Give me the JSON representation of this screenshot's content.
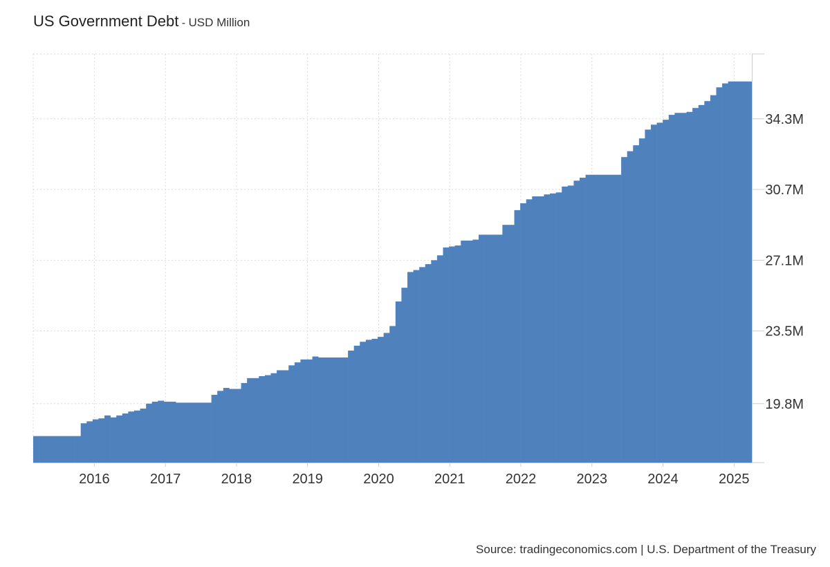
{
  "header": {
    "title": "US Government Debt",
    "separator": " - ",
    "subtitle": "USD Million"
  },
  "source": "Source: tradingeconomics.com | U.S. Department of the Treasury",
  "colors": {
    "bar": "#4f81bd",
    "grid": "#d9d9d9",
    "axis": "#cccccc",
    "text": "#333333"
  },
  "chart_data": {
    "type": "bar",
    "title": "US Government Debt",
    "subtitle": "USD Million",
    "grid": true,
    "y_axis_position": "right",
    "ylim": [
      16.8,
      37.6
    ],
    "x_range": [
      2015.14,
      2025.25
    ],
    "yticks": [
      {
        "value": 19.8,
        "label": "19.8M"
      },
      {
        "value": 23.5,
        "label": "23.5M"
      },
      {
        "value": 27.1,
        "label": "27.1M"
      },
      {
        "value": 30.7,
        "label": "30.7M"
      },
      {
        "value": 34.3,
        "label": "34.3M"
      }
    ],
    "xticks": [
      {
        "value": 2016,
        "label": "2016"
      },
      {
        "value": 2017,
        "label": "2017"
      },
      {
        "value": 2018,
        "label": "2018"
      },
      {
        "value": 2019,
        "label": "2019"
      },
      {
        "value": 2020,
        "label": "2020"
      },
      {
        "value": 2021,
        "label": "2021"
      },
      {
        "value": 2022,
        "label": "2022"
      },
      {
        "value": 2023,
        "label": "2023"
      },
      {
        "value": 2024,
        "label": "2024"
      },
      {
        "value": 2025,
        "label": "2025"
      }
    ],
    "categories": [
      "2015-03",
      "2015-04",
      "2015-05",
      "2015-06",
      "2015-07",
      "2015-08",
      "2015-09",
      "2015-10",
      "2015-11",
      "2015-12",
      "2016-01",
      "2016-02",
      "2016-03",
      "2016-04",
      "2016-05",
      "2016-06",
      "2016-07",
      "2016-08",
      "2016-09",
      "2016-10",
      "2016-11",
      "2016-12",
      "2017-01",
      "2017-02",
      "2017-03",
      "2017-04",
      "2017-05",
      "2017-06",
      "2017-07",
      "2017-08",
      "2017-09",
      "2017-10",
      "2017-11",
      "2017-12",
      "2018-01",
      "2018-02",
      "2018-03",
      "2018-04",
      "2018-05",
      "2018-06",
      "2018-07",
      "2018-08",
      "2018-09",
      "2018-10",
      "2018-11",
      "2018-12",
      "2019-01",
      "2019-02",
      "2019-03",
      "2019-04",
      "2019-05",
      "2019-06",
      "2019-07",
      "2019-08",
      "2019-09",
      "2019-10",
      "2019-11",
      "2019-12",
      "2020-01",
      "2020-02",
      "2020-03",
      "2020-04",
      "2020-05",
      "2020-06",
      "2020-07",
      "2020-08",
      "2020-09",
      "2020-10",
      "2020-11",
      "2020-12",
      "2021-01",
      "2021-02",
      "2021-03",
      "2021-04",
      "2021-05",
      "2021-06",
      "2021-07",
      "2021-08",
      "2021-09",
      "2021-10",
      "2021-11",
      "2021-12",
      "2022-01",
      "2022-02",
      "2022-03",
      "2022-04",
      "2022-05",
      "2022-06",
      "2022-07",
      "2022-08",
      "2022-09",
      "2022-10",
      "2022-11",
      "2022-12",
      "2023-01",
      "2023-02",
      "2023-03",
      "2023-04",
      "2023-05",
      "2023-06",
      "2023-07",
      "2023-08",
      "2023-09",
      "2023-10",
      "2023-11",
      "2023-12",
      "2024-01",
      "2024-02",
      "2024-03",
      "2024-04",
      "2024-05",
      "2024-06",
      "2024-07",
      "2024-08",
      "2024-09",
      "2024-10",
      "2024-11",
      "2024-12",
      "2025-01",
      "2025-02",
      "2025-03"
    ],
    "values": [
      18.15,
      18.15,
      18.15,
      18.15,
      18.15,
      18.15,
      18.15,
      18.15,
      18.8,
      18.9,
      19.0,
      19.05,
      19.2,
      19.1,
      19.2,
      19.3,
      19.4,
      19.45,
      19.55,
      19.8,
      19.9,
      19.95,
      19.9,
      19.9,
      19.85,
      19.85,
      19.85,
      19.85,
      19.85,
      19.85,
      20.25,
      20.45,
      20.6,
      20.55,
      20.55,
      20.85,
      21.1,
      21.1,
      21.2,
      21.25,
      21.35,
      21.5,
      21.5,
      21.75,
      21.9,
      22.05,
      22.05,
      22.2,
      22.15,
      22.15,
      22.15,
      22.15,
      22.15,
      22.5,
      22.75,
      22.95,
      23.05,
      23.1,
      23.2,
      23.4,
      23.75,
      25.0,
      25.7,
      26.5,
      26.6,
      26.75,
      26.9,
      27.1,
      27.35,
      27.75,
      27.8,
      27.85,
      28.1,
      28.1,
      28.15,
      28.4,
      28.4,
      28.4,
      28.4,
      28.9,
      28.9,
      29.65,
      30.0,
      30.2,
      30.35,
      30.35,
      30.45,
      30.5,
      30.55,
      30.85,
      30.9,
      31.15,
      31.3,
      31.45,
      31.45,
      31.45,
      31.45,
      31.45,
      31.45,
      32.35,
      32.65,
      32.95,
      33.3,
      33.75,
      34.0,
      34.1,
      34.25,
      34.5,
      34.6,
      34.6,
      34.65,
      34.85,
      35.0,
      35.2,
      35.5,
      35.9,
      36.1,
      36.2,
      36.2,
      36.2,
      36.2
    ]
  }
}
